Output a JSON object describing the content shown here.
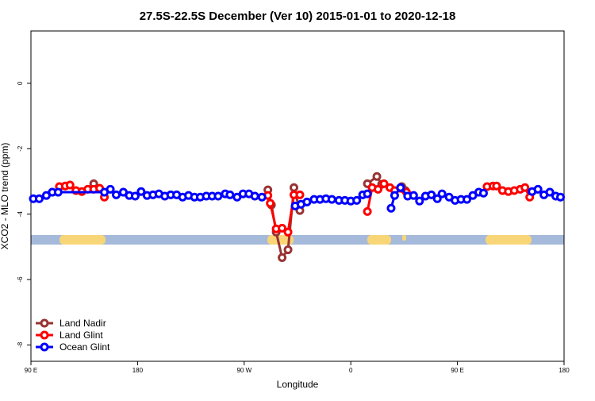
{
  "chart_data": {
    "type": "line",
    "title": "27.5S-22.5S December (Ver 10)   2015-01-01 to 2020-12-18",
    "x_label": "Longitude",
    "y_label": "XCO2 - MLO trend (ppm)",
    "xlim": [
      90,
      540
    ],
    "ylim": [
      -8.5,
      1.6
    ],
    "xticks": [
      {
        "value": 90,
        "label": "90 E"
      },
      {
        "value": 180,
        "label": "180"
      },
      {
        "value": 270,
        "label": "90 W"
      },
      {
        "value": 360,
        "label": "0"
      },
      {
        "value": 450,
        "label": "90 E"
      },
      {
        "value": 540,
        "label": "180"
      }
    ],
    "yticks": [
      0,
      -2,
      -4,
      -6,
      -8
    ],
    "legend": "bottom-left",
    "series": [
      {
        "name": "Land Nadir",
        "color": "#993333",
        "x": [
          143,
          220,
          290,
          293,
          297,
          302,
          307,
          312,
          317,
          350,
          374,
          382,
          386,
          395,
          403,
          406
        ],
        "values": [
          -3.07,
          null,
          -3.26,
          -3.72,
          -4.55,
          -5.33,
          -5.09,
          -3.19,
          -3.89,
          null,
          -3.07,
          -2.85,
          -3.09,
          null,
          -3.16,
          -3.28
        ]
      },
      {
        "name": "Land Glint",
        "color": "#ff0000",
        "x": [
          114,
          119,
          123,
          128,
          133,
          138,
          143,
          148,
          152,
          220,
          290,
          292,
          297,
          302,
          307,
          312,
          317,
          350,
          374,
          378,
          383,
          388,
          393,
          397,
          407,
          440,
          475,
          480,
          483,
          488,
          493,
          498,
          503,
          507,
          511
        ],
        "values": [
          -3.16,
          -3.14,
          -3.11,
          -3.28,
          -3.31,
          -3.24,
          -3.24,
          -3.21,
          -3.48,
          null,
          -3.43,
          -3.67,
          -4.45,
          -4.43,
          -4.55,
          -3.41,
          -3.41,
          null,
          -3.92,
          -3.19,
          -3.24,
          -3.07,
          -3.19,
          -3.28,
          -3.33,
          null,
          -3.16,
          -3.14,
          -3.14,
          -3.28,
          -3.31,
          -3.28,
          -3.24,
          -3.19,
          -3.48
        ]
      },
      {
        "name": "Ocean Glint",
        "color": "#0000ff",
        "x": [
          92,
          97,
          103,
          108,
          113,
          152,
          157,
          162,
          168,
          173,
          178,
          183,
          188,
          193,
          198,
          203,
          208,
          213,
          218,
          223,
          228,
          233,
          238,
          243,
          248,
          254,
          258,
          264,
          269,
          274,
          279,
          285,
          300,
          313,
          318,
          323,
          329,
          334,
          339,
          344,
          350,
          355,
          360,
          365,
          370,
          374,
          385,
          394,
          397,
          402,
          408,
          413,
          418,
          423,
          428,
          433,
          437,
          443,
          448,
          453,
          458,
          463,
          468,
          472,
          490,
          513,
          518,
          523,
          528,
          533,
          537
        ],
        "values": [
          -3.53,
          -3.53,
          -3.43,
          -3.33,
          -3.33,
          -3.33,
          -3.24,
          -3.41,
          -3.33,
          -3.43,
          -3.45,
          -3.31,
          -3.43,
          -3.41,
          -3.38,
          -3.45,
          -3.41,
          -3.41,
          -3.48,
          -3.43,
          -3.48,
          -3.48,
          -3.45,
          -3.45,
          -3.45,
          -3.38,
          -3.41,
          -3.48,
          -3.38,
          -3.38,
          -3.45,
          -3.48,
          null,
          -3.75,
          -3.7,
          -3.63,
          -3.55,
          -3.55,
          -3.53,
          -3.55,
          -3.58,
          -3.58,
          -3.6,
          -3.58,
          -3.41,
          -3.38,
          null,
          -3.82,
          -3.43,
          -3.19,
          -3.45,
          -3.43,
          -3.6,
          -3.45,
          -3.41,
          -3.53,
          -3.38,
          -3.48,
          -3.58,
          -3.55,
          -3.55,
          -3.43,
          -3.33,
          -3.36,
          null,
          -3.31,
          -3.24,
          -3.41,
          -3.33,
          -3.45,
          -3.48
        ]
      }
    ]
  }
}
